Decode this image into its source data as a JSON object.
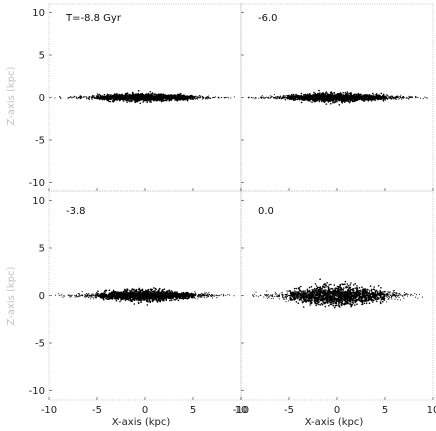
{
  "chart_data": {
    "type": "scatter",
    "layout": "2x2 grid of edge-on particle snapshots",
    "xlabel": "X-axis (kpc)",
    "ylabel": "Z-axis (kpc)",
    "xlim": [
      -10,
      10
    ],
    "ylim": [
      -11,
      11
    ],
    "x_ticks": [
      "-10",
      "-5",
      "0",
      "5",
      "10"
    ],
    "y_ticks": [
      "10",
      "5",
      "0",
      "-5",
      "-10"
    ],
    "grid": false,
    "panels": [
      {
        "title": "T=-8.8 Gyr",
        "disk_center": [
          0,
          0
        ],
        "disk_x_sd": 3.2,
        "disk_z_sd": 0.22,
        "extent": 9.5
      },
      {
        "title": "-6.0",
        "disk_center": [
          0,
          0
        ],
        "disk_x_sd": 3.3,
        "disk_z_sd": 0.26,
        "extent": 9.5
      },
      {
        "title": "-3.8",
        "disk_center": [
          0,
          0
        ],
        "disk_x_sd": 3.3,
        "disk_z_sd": 0.3,
        "extent": 9.5
      },
      {
        "title": "0.0",
        "disk_center": [
          0,
          0
        ],
        "disk_x_sd": 3.1,
        "disk_z_sd": 0.55,
        "extent": 9.0
      }
    ]
  }
}
